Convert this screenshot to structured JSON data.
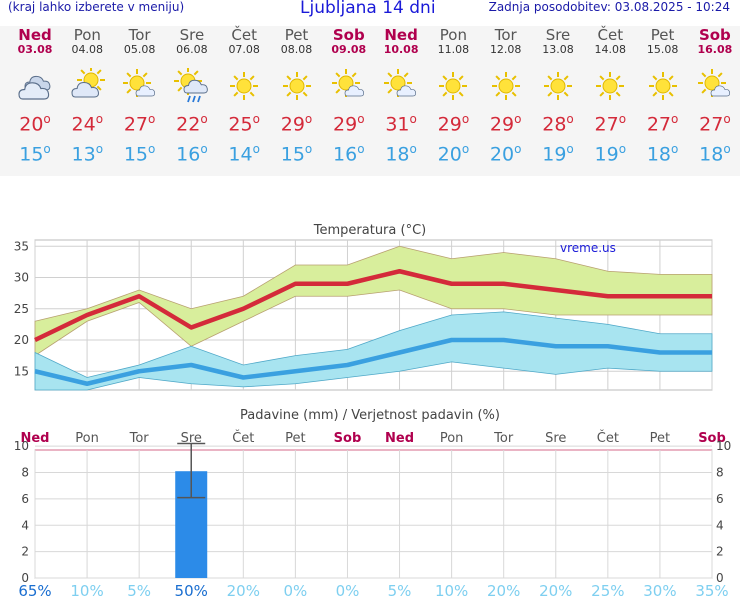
{
  "header": {
    "left_note": "(kraj lahko izberete v meniju)",
    "title": "Ljubljana 14 dni",
    "updated": "Zadnja posodobitev: 03.08.2025 - 10:24"
  },
  "colors": {
    "weekend_red": "#b0004e",
    "max_temp": "#d42a3a",
    "min_temp": "#3aa0e0",
    "max_band": "#d8ee9c",
    "min_band": "#a8e4f0",
    "bar": "#2c8be8"
  },
  "days": [
    {
      "name": "Ned",
      "date": "03.08",
      "weekend": true,
      "icon": "cloudy-icon",
      "max": "20",
      "min": "15"
    },
    {
      "name": "Pon",
      "date": "04.08",
      "weekend": false,
      "icon": "partly-cloudy-icon",
      "max": "24",
      "min": "13"
    },
    {
      "name": "Tor",
      "date": "05.08",
      "weekend": false,
      "icon": "sun-cloud-icon",
      "max": "27",
      "min": "15"
    },
    {
      "name": "Sre",
      "date": "06.08",
      "weekend": false,
      "icon": "sun-rain-icon",
      "max": "22",
      "min": "16"
    },
    {
      "name": "Čet",
      "date": "07.08",
      "weekend": false,
      "icon": "sun-icon",
      "max": "25",
      "min": "14"
    },
    {
      "name": "Pet",
      "date": "08.08",
      "weekend": false,
      "icon": "sun-icon",
      "max": "29",
      "min": "15"
    },
    {
      "name": "Sob",
      "date": "09.08",
      "weekend": true,
      "icon": "sun-cloud-icon",
      "max": "29",
      "min": "16"
    },
    {
      "name": "Ned",
      "date": "10.08",
      "weekend": true,
      "icon": "sun-cloud-icon",
      "max": "31",
      "min": "18"
    },
    {
      "name": "Pon",
      "date": "11.08",
      "weekend": false,
      "icon": "sun-icon",
      "max": "29",
      "min": "20"
    },
    {
      "name": "Tor",
      "date": "12.08",
      "weekend": false,
      "icon": "sun-icon",
      "max": "29",
      "min": "20"
    },
    {
      "name": "Sre",
      "date": "13.08",
      "weekend": false,
      "icon": "sun-icon",
      "max": "28",
      "min": "19"
    },
    {
      "name": "Čet",
      "date": "14.08",
      "weekend": false,
      "icon": "sun-icon",
      "max": "27",
      "min": "19"
    },
    {
      "name": "Pet",
      "date": "15.08",
      "weekend": false,
      "icon": "sun-icon",
      "max": "27",
      "min": "18"
    },
    {
      "name": "Sob",
      "date": "16.08",
      "weekend": true,
      "icon": "sun-cloud-icon",
      "max": "27",
      "min": "18"
    }
  ],
  "chart_data": [
    {
      "type": "line",
      "title": "Temperatura (°C)",
      "watermark": "vreme.us",
      "categories": [
        "Ned",
        "Pon",
        "Tor",
        "Sre",
        "Čet",
        "Pet",
        "Sob",
        "Ned",
        "Pon",
        "Tor",
        "Sre",
        "Čet",
        "Pet",
        "Sob"
      ],
      "ylim": [
        12,
        36
      ],
      "yticks": [
        15,
        20,
        25,
        30,
        35
      ],
      "series": [
        {
          "name": "max",
          "values": [
            20,
            24,
            27,
            22,
            25,
            29,
            29,
            31,
            29,
            29,
            28,
            27,
            27,
            27
          ]
        },
        {
          "name": "min",
          "values": [
            15,
            13,
            15,
            16,
            14,
            15,
            16,
            18,
            20,
            20,
            19,
            19,
            18,
            18
          ]
        }
      ],
      "bands": [
        {
          "name": "max_range",
          "low": [
            17.5,
            23,
            26,
            19,
            23,
            27,
            27,
            28,
            25,
            25,
            24,
            24,
            24,
            24
          ],
          "high": [
            23,
            25,
            28,
            25,
            27,
            32,
            32,
            35,
            33,
            34,
            33,
            31,
            30.5,
            30.5
          ]
        },
        {
          "name": "min_range",
          "low": [
            12,
            12,
            14,
            13,
            12.5,
            13,
            14,
            15,
            16.5,
            15.5,
            14.5,
            15.5,
            15,
            15
          ]
        },
        {
          "name": "min_range_high",
          "high": [
            18,
            14,
            16,
            19,
            16,
            17.5,
            18.5,
            21.5,
            24,
            24.5,
            23.5,
            22.5,
            21,
            21
          ]
        }
      ]
    },
    {
      "type": "bar",
      "title": "Padavine (mm) / Verjetnost padavin (%)",
      "categories": [
        "Ned",
        "Pon",
        "Tor",
        "Sre",
        "Čet",
        "Pet",
        "Sob",
        "Ned",
        "Pon",
        "Tor",
        "Sre",
        "Čet",
        "Pet",
        "Sob"
      ],
      "ylim": [
        0,
        10
      ],
      "yticks": [
        0,
        2,
        4,
        6,
        8,
        10
      ],
      "values": [
        0,
        0,
        0,
        8.1,
        0,
        0,
        0,
        0,
        0,
        0,
        0,
        0,
        0,
        0
      ],
      "errors": [
        null,
        null,
        null,
        [
          6.1,
          10.2
        ],
        null,
        null,
        null,
        null,
        null,
        null,
        null,
        null,
        null,
        null
      ],
      "probability": [
        "65%",
        "10%",
        "5%",
        "50%",
        "20%",
        "0%",
        "0%",
        "5%",
        "10%",
        "20%",
        "20%",
        "25%",
        "30%",
        "35%"
      ]
    }
  ]
}
